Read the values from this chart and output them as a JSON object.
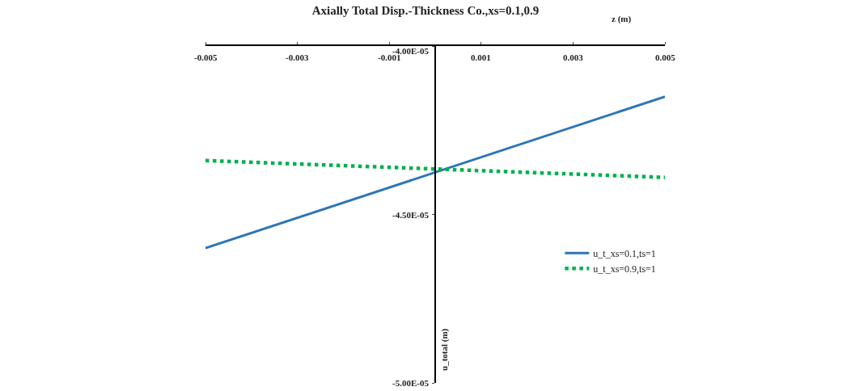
{
  "chart_data": {
    "type": "line",
    "title": "Axially Total Disp.-Thickness Co.,xs=0.1,0.9",
    "xlabel": "z (m)",
    "ylabel": "u_total (m)",
    "x": [
      -0.005,
      0.005
    ],
    "series": [
      {
        "name": "u_t_xs=0.1,ts=1",
        "color": "#2e75b6",
        "values": [
          -4.6e-05,
          -4.15e-05
        ],
        "line_style": "solid"
      },
      {
        "name": "u_t_xs=0.9,ts=1",
        "color": "#00b050",
        "values": [
          -4.34e-05,
          -4.39e-05
        ],
        "line_style": "dotted"
      }
    ],
    "xlim": [
      -0.005,
      0.005
    ],
    "xticks": [
      -0.005,
      -0.003,
      -0.001,
      0.001,
      0.003,
      0.005
    ],
    "ylim": [
      -5e-05,
      -4e-05
    ],
    "yticks": [
      {
        "value": -4e-05,
        "label": "-4.00E-05"
      },
      {
        "value": -4.5e-05,
        "label": "-4.50E-05"
      },
      {
        "value": -5e-05,
        "label": "-5.00E-05"
      }
    ],
    "legend": "right",
    "marker": "none"
  }
}
